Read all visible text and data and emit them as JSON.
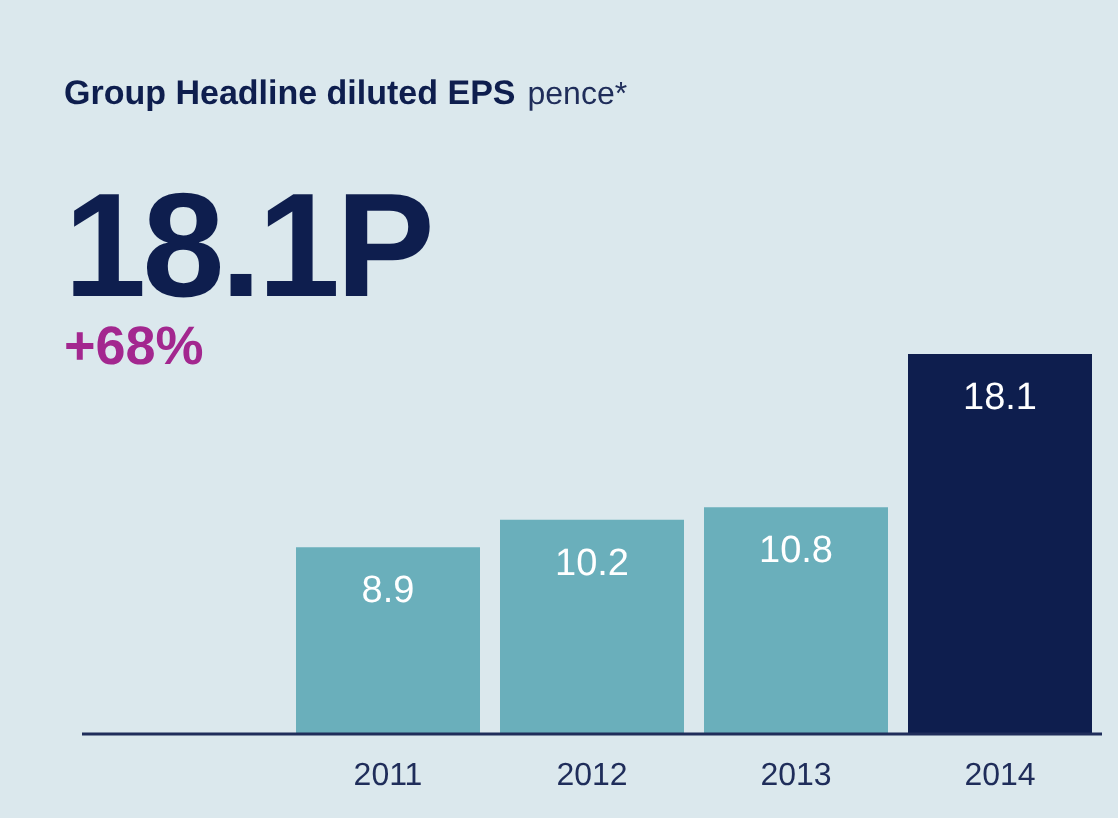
{
  "chart_data": {
    "type": "bar",
    "title": "Group Headline diluted EPS",
    "subtitle": "pence*",
    "annotations": [
      "18.1P",
      "+68%"
    ],
    "categories": [
      null,
      "2011",
      "2012",
      "2013",
      "2014"
    ],
    "values": [
      null,
      8.9,
      10.2,
      10.8,
      18.1
    ],
    "colors": [
      "#6aafbb",
      "#6aafbb",
      "#6aafbb",
      "#6aafbb",
      "#0e1e4e"
    ],
    "data_labels": true,
    "grid": false,
    "legend": false
  }
}
